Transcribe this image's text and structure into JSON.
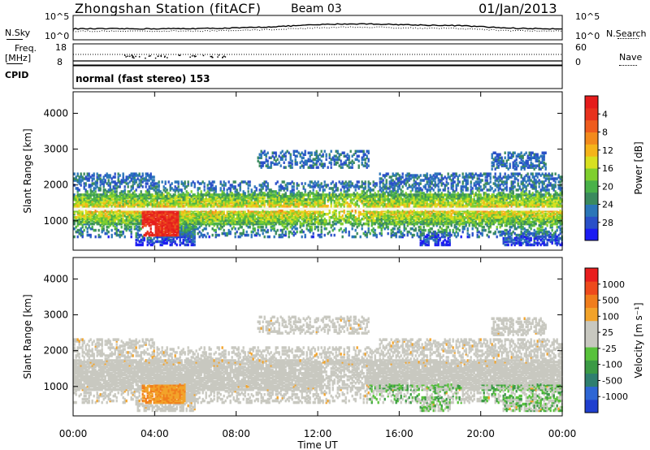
{
  "header": {
    "station_title": "Zhongshan Station (fitACF)",
    "beam": "Beam 03",
    "date": "01/Jan/2013"
  },
  "strips": {
    "nsky_label": "N.Sky",
    "nsky_ticks": [
      "10^5",
      "10^0"
    ],
    "nsearch_label": "N.Search",
    "nsearch_ticks": [
      "10^5",
      "10^0"
    ],
    "freq_label": "Freq.",
    "freq_unit": "[MHz]",
    "freq_ticks": [
      "18",
      "8"
    ],
    "nave_label": "Nave",
    "nave_ticks": [
      "60",
      "0"
    ],
    "cpid_label": "CPID",
    "cpid_text": "normal (fast stereo) 153"
  },
  "chart_data": [
    {
      "type": "heatmap",
      "title": "",
      "xlabel": "Time UT",
      "ylabel": "Slant Range [km]",
      "x_ticks": [
        "00:00",
        "04:00",
        "08:00",
        "12:00",
        "16:00",
        "20:00",
        "00:00"
      ],
      "y_ticks": [
        "1000",
        "2000",
        "3000",
        "4000"
      ],
      "xlim": [
        0,
        24
      ],
      "ylim": [
        180,
        4600
      ],
      "colorbar": {
        "label": "Power [dB]",
        "ticks": [
          "4",
          "8",
          "12",
          "16",
          "20",
          "24",
          "28"
        ],
        "range": [
          0,
          30
        ],
        "colors": [
          "#1c1cf2",
          "#2a50c8",
          "#2b76b8",
          "#3a8a5e",
          "#49b149",
          "#7fcf2e",
          "#d8e020",
          "#f5b41a",
          "#f28a1c",
          "#ee5c1e",
          "#e8321e",
          "#e51c1c"
        ]
      }
    },
    {
      "type": "heatmap",
      "title": "",
      "xlabel": "Time UT",
      "ylabel": "Slant Range [km]",
      "x_ticks": [
        "00:00",
        "04:00",
        "08:00",
        "12:00",
        "16:00",
        "20:00",
        "00:00"
      ],
      "y_ticks": [
        "1000",
        "2000",
        "3000",
        "4000"
      ],
      "xlim": [
        0,
        24
      ],
      "ylim": [
        180,
        4600
      ],
      "colorbar": {
        "label": "Velocity [m s⁻¹]",
        "ticks": [
          "1000",
          "500",
          "100",
          "25",
          "-25",
          "-100",
          "-500",
          "-1000"
        ],
        "colors": [
          "#1f3fcf",
          "#2e66d4",
          "#2f7f6f",
          "#3b9a45",
          "#58c23b",
          "#c8c8c0",
          "#c8c8c0",
          "#f2a32a",
          "#f07d1c",
          "#ee4a1c",
          "#e81e1e"
        ]
      }
    }
  ]
}
